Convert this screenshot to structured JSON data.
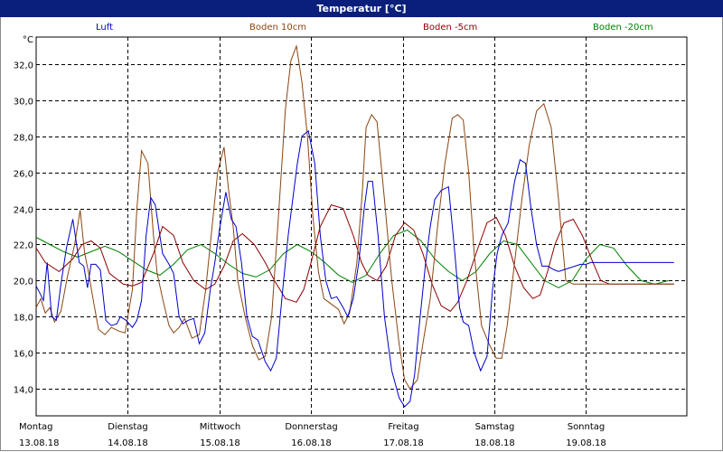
{
  "window": {
    "title": "Temperatur [°C]"
  },
  "colors": {
    "title_bg": "#0a1f7a",
    "luft": "#0000cc",
    "boden10": "#8b4513",
    "boden_m5": "#8b0000",
    "boden_m20": "#008000",
    "grid": "#000000"
  },
  "chart_data": {
    "type": "line",
    "title": "Temperatur [°C]",
    "ylabel": "°C",
    "ylim": [
      12.5,
      33.5
    ],
    "grid": true,
    "yticks": [
      "14,0",
      "16,0",
      "18,0",
      "20,0",
      "22,0",
      "24,0",
      "26,0",
      "28,0",
      "30,0",
      "32,0"
    ],
    "ytick_values": [
      14,
      16,
      18,
      20,
      22,
      24,
      26,
      28,
      30,
      32
    ],
    "xlim": [
      0,
      7.1
    ],
    "day_labels": [
      {
        "weekday": "Montag",
        "date": "13.08.18"
      },
      {
        "weekday": "Dienstag",
        "date": "14.08.18"
      },
      {
        "weekday": "Mittwoch",
        "date": "15.08.18"
      },
      {
        "weekday": "Donnerstag",
        "date": "16.08.18"
      },
      {
        "weekday": "Freitag",
        "date": "17.08.18"
      },
      {
        "weekday": "Samstag",
        "date": "18.08.18"
      },
      {
        "weekday": "Sonntag",
        "date": "19.08.18"
      }
    ],
    "series": [
      {
        "name": "Luft",
        "color": "#0000cc",
        "x": [
          0,
          0.04,
          0.08,
          0.12,
          0.17,
          0.22,
          0.27,
          0.33,
          0.4,
          0.47,
          0.52,
          0.56,
          0.6,
          0.65,
          0.7,
          0.76,
          0.82,
          0.88,
          0.92,
          0.98,
          1.05,
          1.1,
          1.15,
          1.2,
          1.25,
          1.3,
          1.38,
          1.45,
          1.5,
          1.56,
          1.6,
          1.66,
          1.72,
          1.78,
          1.84,
          1.9,
          1.95,
          2.0,
          2.07,
          2.13,
          2.18,
          2.24,
          2.3,
          2.36,
          2.42,
          2.5,
          2.56,
          2.62,
          2.7,
          2.75,
          2.8,
          2.85,
          2.9,
          2.97,
          3.04,
          3.1,
          3.16,
          3.22,
          3.28,
          3.35,
          3.4,
          3.46,
          3.52,
          3.58,
          3.62,
          3.67,
          3.73,
          3.8,
          3.88,
          3.96,
          4.02,
          4.08,
          4.13,
          4.18,
          4.25,
          4.3,
          4.35,
          4.42,
          4.5,
          4.56,
          4.62,
          4.66,
          4.72,
          4.78,
          4.85,
          4.92,
          4.98,
          5.03,
          5.08,
          5.15,
          5.22,
          5.28,
          5.34,
          5.4,
          5.46,
          5.52,
          5.58,
          5.65,
          5.7,
          5.76,
          5.82,
          5.88,
          5.94,
          6.0,
          6.05,
          6.1,
          6.16,
          6.22,
          6.28,
          6.35,
          6.42,
          6.48,
          6.54,
          6.6,
          6.66,
          6.72,
          6.78,
          6.84,
          6.9,
          6.96
        ],
        "y": [
          19.7,
          19.3,
          18.9,
          21.0,
          18.0,
          17.8,
          19.8,
          21.8,
          23.4,
          21.0,
          20.8,
          19.6,
          20.9,
          20.9,
          20.6,
          17.8,
          17.5,
          17.6,
          18.0,
          17.8,
          17.4,
          17.8,
          18.9,
          22.5,
          24.6,
          24.2,
          21.5,
          20.9,
          20.4,
          18.0,
          17.6,
          17.8,
          17.9,
          16.5,
          17.1,
          19.5,
          21.0,
          22.8,
          24.9,
          23.4,
          23.0,
          21.0,
          18.0,
          16.9,
          16.7,
          15.5,
          15.0,
          15.7,
          20.0,
          22.5,
          24.5,
          26.5,
          28.0,
          28.3,
          26.5,
          22.5,
          20.0,
          19.0,
          19.1,
          18.5,
          18.0,
          19.0,
          21.0,
          24.0,
          25.5,
          25.5,
          22.5,
          18.0,
          15.0,
          13.5,
          13.0,
          13.3,
          14.8,
          17.5,
          21.0,
          23.0,
          24.5,
          25.0,
          25.2,
          22.0,
          18.5,
          17.7,
          17.5,
          16.0,
          15.0,
          15.8,
          19.5,
          21.5,
          22.5,
          23.2,
          25.5,
          26.7,
          26.5,
          24.0,
          22.0,
          20.8,
          20.8,
          20.6,
          20.5,
          20.6,
          20.7,
          20.8,
          20.9,
          20.9,
          21.0,
          21.0,
          21.0,
          21.0,
          21.0,
          21.0,
          21.0,
          21.0,
          21.0,
          21.0,
          21.0,
          21.0,
          21.0,
          21.0,
          21.0,
          21.0
        ]
      },
      {
        "name": "Boden 10cm",
        "color": "#8b4513",
        "x": [
          0,
          0.05,
          0.1,
          0.15,
          0.2,
          0.27,
          0.34,
          0.42,
          0.48,
          0.53,
          0.57,
          0.62,
          0.68,
          0.75,
          0.82,
          0.9,
          0.97,
          1.05,
          1.1,
          1.15,
          1.22,
          1.28,
          1.32,
          1.38,
          1.45,
          1.5,
          1.56,
          1.62,
          1.7,
          1.78,
          1.85,
          1.92,
          1.98,
          2.05,
          2.1,
          2.15,
          2.2,
          2.28,
          2.36,
          2.43,
          2.5,
          2.57,
          2.65,
          2.72,
          2.78,
          2.84,
          2.9,
          2.96,
          3.02,
          3.08,
          3.14,
          3.22,
          3.3,
          3.36,
          3.42,
          3.5,
          3.56,
          3.6,
          3.66,
          3.72,
          3.8,
          3.88,
          3.96,
          4.02,
          4.08,
          4.16,
          4.22,
          4.3,
          4.38,
          4.46,
          4.54,
          4.6,
          4.66,
          4.72,
          4.78,
          4.86,
          4.94,
          5.02,
          5.08,
          5.14,
          5.22,
          5.3,
          5.38,
          5.46,
          5.54,
          5.62,
          5.7,
          5.78,
          5.86,
          5.94,
          6.0,
          6.06,
          6.12,
          6.18,
          6.24,
          6.3,
          6.36,
          6.42,
          6.48,
          6.54,
          6.6,
          6.66,
          6.72,
          6.78,
          6.84,
          6.9,
          6.96
        ],
        "y": [
          18.5,
          19.0,
          18.2,
          18.5,
          17.7,
          18.3,
          20.2,
          22.0,
          23.9,
          21.5,
          20.5,
          19.0,
          17.3,
          17.0,
          17.4,
          17.2,
          17.1,
          19.5,
          24.0,
          27.2,
          26.5,
          22.5,
          20.4,
          19.0,
          17.5,
          17.1,
          17.4,
          17.9,
          16.8,
          17.0,
          19.5,
          23.0,
          26.0,
          27.4,
          25.0,
          23.0,
          20.0,
          18.0,
          16.4,
          15.6,
          15.8,
          18.0,
          24.0,
          29.5,
          32.2,
          33.0,
          31.0,
          28.0,
          23.5,
          20.5,
          19.0,
          18.7,
          18.4,
          17.6,
          18.2,
          21.0,
          25.0,
          28.5,
          29.2,
          28.8,
          24.5,
          20.0,
          16.5,
          14.5,
          14.0,
          14.5,
          16.5,
          19.0,
          23.0,
          26.5,
          29.0,
          29.2,
          28.9,
          26.0,
          21.5,
          17.5,
          16.5,
          15.7,
          15.7,
          17.5,
          21.0,
          24.5,
          27.5,
          29.4,
          29.8,
          28.5,
          24.5,
          20.0,
          19.8,
          19.8,
          19.8,
          19.8,
          19.8,
          19.8,
          19.8,
          19.8,
          19.8,
          19.8,
          19.8,
          19.8,
          19.8,
          19.8,
          19.8,
          19.8,
          19.8,
          19.8,
          19.8
        ]
      },
      {
        "name": "Boden -5cm",
        "color": "#8b0000",
        "x": [
          0,
          0.1,
          0.25,
          0.4,
          0.5,
          0.6,
          0.7,
          0.8,
          0.95,
          1.05,
          1.15,
          1.28,
          1.38,
          1.5,
          1.6,
          1.72,
          1.85,
          1.95,
          2.05,
          2.15,
          2.25,
          2.38,
          2.5,
          2.6,
          2.72,
          2.84,
          2.92,
          3.0,
          3.1,
          3.22,
          3.35,
          3.46,
          3.55,
          3.62,
          3.72,
          3.82,
          3.92,
          4.02,
          4.12,
          4.22,
          4.32,
          4.42,
          4.52,
          4.6,
          4.7,
          4.82,
          4.92,
          5.02,
          5.12,
          5.22,
          5.32,
          5.42,
          5.5,
          5.58,
          5.66,
          5.76,
          5.86,
          5.96,
          6.06,
          6.16,
          6.26,
          6.36,
          6.46,
          6.56,
          6.66,
          6.76,
          6.86,
          6.96
        ],
        "y": [
          21.8,
          21.0,
          20.5,
          21.2,
          22.0,
          22.2,
          21.8,
          20.4,
          19.8,
          19.7,
          19.9,
          21.5,
          23.0,
          22.5,
          21.0,
          20.0,
          19.5,
          19.8,
          20.8,
          22.2,
          22.6,
          22.0,
          21.0,
          20.0,
          19.0,
          18.8,
          19.5,
          21.0,
          23.0,
          24.2,
          24.0,
          22.5,
          21.0,
          20.3,
          20.0,
          20.8,
          22.5,
          23.2,
          22.8,
          21.5,
          19.8,
          18.6,
          18.3,
          18.8,
          20.0,
          21.8,
          23.2,
          23.5,
          22.5,
          20.8,
          19.6,
          19.0,
          19.2,
          20.5,
          22.0,
          23.2,
          23.4,
          22.5,
          21.2,
          20.0,
          19.8,
          19.8,
          19.8,
          19.8,
          19.8,
          19.8,
          19.8,
          19.8
        ]
      },
      {
        "name": "Boden -20cm",
        "color": "#008000",
        "x": [
          0,
          0.15,
          0.3,
          0.45,
          0.6,
          0.75,
          0.9,
          1.05,
          1.2,
          1.35,
          1.5,
          1.65,
          1.8,
          1.95,
          2.1,
          2.25,
          2.4,
          2.55,
          2.7,
          2.85,
          3.0,
          3.15,
          3.3,
          3.45,
          3.6,
          3.75,
          3.9,
          4.05,
          4.2,
          4.35,
          4.5,
          4.65,
          4.8,
          4.95,
          5.1,
          5.25,
          5.4,
          5.55,
          5.7,
          5.85,
          6.0,
          6.15,
          6.3,
          6.45,
          6.6,
          6.75,
          6.9
        ],
        "y": [
          22.4,
          22.0,
          21.6,
          21.3,
          21.6,
          21.9,
          21.6,
          21.1,
          20.6,
          20.3,
          20.9,
          21.7,
          22.0,
          21.5,
          20.9,
          20.4,
          20.2,
          20.6,
          21.5,
          22.0,
          21.6,
          21.0,
          20.3,
          19.9,
          20.3,
          21.5,
          22.5,
          22.8,
          22.2,
          21.2,
          20.5,
          20.0,
          20.5,
          21.5,
          22.2,
          22.0,
          21.0,
          20.0,
          19.6,
          20.0,
          21.2,
          22.0,
          21.8,
          20.8,
          20.0,
          19.8,
          20.0
        ]
      }
    ]
  }
}
